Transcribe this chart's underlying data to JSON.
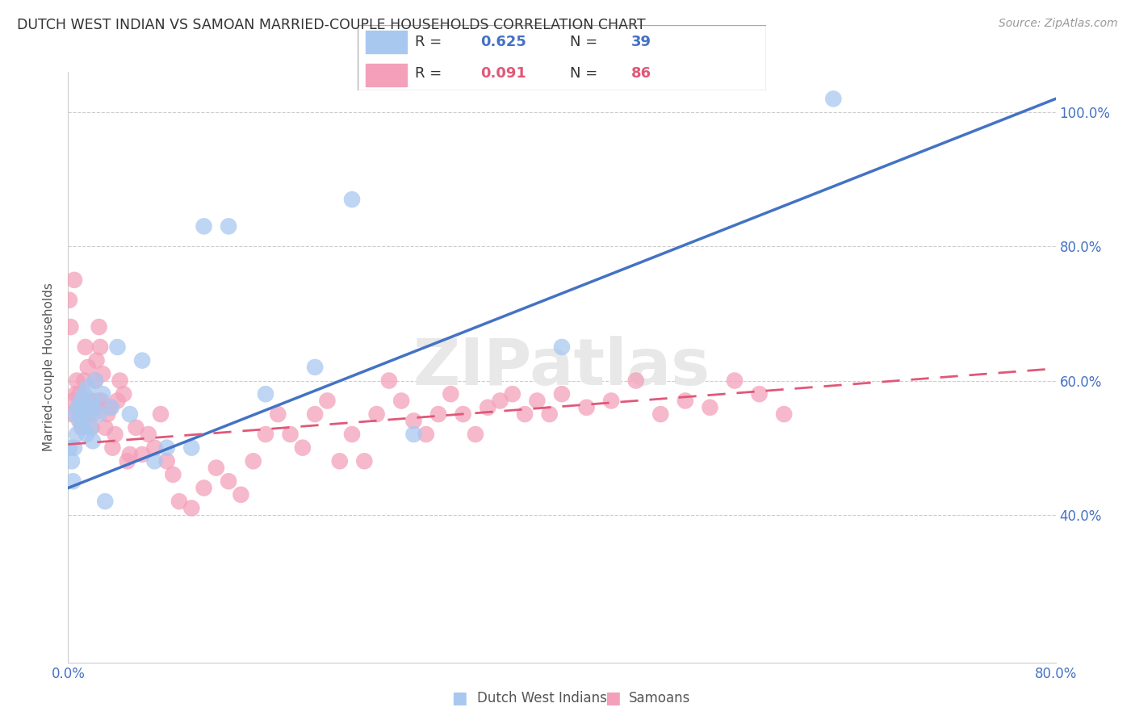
{
  "title": "DUTCH WEST INDIAN VS SAMOAN MARRIED-COUPLE HOUSEHOLDS CORRELATION CHART",
  "source": "Source: ZipAtlas.com",
  "ylabel": "Married-couple Households",
  "x_min": 0.0,
  "x_max": 0.8,
  "y_min": 0.18,
  "y_max": 1.06,
  "y_ticks": [
    0.4,
    0.6,
    0.8,
    1.0
  ],
  "y_tick_labels": [
    "40.0%",
    "60.0%",
    "80.0%",
    "100.0%"
  ],
  "blue_color": "#A8C8F0",
  "pink_color": "#F4A0BA",
  "blue_line_color": "#4472C4",
  "pink_line_color": "#E05878",
  "grid_color": "#CCCCCC",
  "axis_label_color": "#4472C4",
  "legend_label1": "Dutch West Indians",
  "legend_label2": "Samoans",
  "blue_scatter_x": [
    0.001,
    0.003,
    0.004,
    0.005,
    0.006,
    0.007,
    0.008,
    0.009,
    0.01,
    0.011,
    0.012,
    0.013,
    0.014,
    0.015,
    0.016,
    0.017,
    0.018,
    0.019,
    0.02,
    0.021,
    0.022,
    0.025,
    0.028,
    0.03,
    0.035,
    0.04,
    0.05,
    0.06,
    0.07,
    0.08,
    0.1,
    0.11,
    0.13,
    0.16,
    0.2,
    0.23,
    0.28,
    0.4,
    0.62
  ],
  "blue_scatter_y": [
    0.5,
    0.48,
    0.45,
    0.5,
    0.55,
    0.52,
    0.56,
    0.54,
    0.57,
    0.55,
    0.53,
    0.58,
    0.56,
    0.52,
    0.59,
    0.55,
    0.53,
    0.57,
    0.51,
    0.56,
    0.6,
    0.55,
    0.58,
    0.42,
    0.56,
    0.65,
    0.55,
    0.63,
    0.48,
    0.5,
    0.5,
    0.83,
    0.83,
    0.58,
    0.62,
    0.87,
    0.52,
    0.65,
    1.02
  ],
  "pink_scatter_x": [
    0.001,
    0.002,
    0.003,
    0.004,
    0.005,
    0.006,
    0.007,
    0.008,
    0.009,
    0.01,
    0.011,
    0.012,
    0.013,
    0.014,
    0.015,
    0.016,
    0.017,
    0.018,
    0.019,
    0.02,
    0.021,
    0.022,
    0.023,
    0.024,
    0.025,
    0.026,
    0.027,
    0.028,
    0.03,
    0.032,
    0.034,
    0.036,
    0.038,
    0.04,
    0.042,
    0.045,
    0.048,
    0.05,
    0.055,
    0.06,
    0.065,
    0.07,
    0.075,
    0.08,
    0.085,
    0.09,
    0.1,
    0.11,
    0.12,
    0.13,
    0.14,
    0.15,
    0.16,
    0.17,
    0.18,
    0.19,
    0.2,
    0.21,
    0.22,
    0.23,
    0.24,
    0.25,
    0.26,
    0.27,
    0.28,
    0.29,
    0.3,
    0.31,
    0.32,
    0.33,
    0.34,
    0.35,
    0.36,
    0.37,
    0.38,
    0.39,
    0.4,
    0.42,
    0.44,
    0.46,
    0.48,
    0.5,
    0.52,
    0.54,
    0.56,
    0.58
  ],
  "pink_scatter_y": [
    0.72,
    0.68,
    0.55,
    0.57,
    0.75,
    0.58,
    0.6,
    0.56,
    0.58,
    0.54,
    0.53,
    0.57,
    0.6,
    0.65,
    0.55,
    0.62,
    0.56,
    0.57,
    0.53,
    0.55,
    0.56,
    0.6,
    0.63,
    0.57,
    0.68,
    0.65,
    0.57,
    0.61,
    0.53,
    0.55,
    0.56,
    0.5,
    0.52,
    0.57,
    0.6,
    0.58,
    0.48,
    0.49,
    0.53,
    0.49,
    0.52,
    0.5,
    0.55,
    0.48,
    0.46,
    0.42,
    0.41,
    0.44,
    0.47,
    0.45,
    0.43,
    0.48,
    0.52,
    0.55,
    0.52,
    0.5,
    0.55,
    0.57,
    0.48,
    0.52,
    0.48,
    0.55,
    0.6,
    0.57,
    0.54,
    0.52,
    0.55,
    0.58,
    0.55,
    0.52,
    0.56,
    0.57,
    0.58,
    0.55,
    0.57,
    0.55,
    0.58,
    0.56,
    0.57,
    0.6,
    0.55,
    0.57,
    0.56,
    0.6,
    0.58,
    0.55
  ],
  "blue_trendline_x": [
    0.0,
    0.8
  ],
  "blue_trendline_y": [
    0.44,
    1.02
  ],
  "pink_trendline_x": [
    0.0,
    0.8
  ],
  "pink_trendline_y": [
    0.505,
    0.618
  ]
}
